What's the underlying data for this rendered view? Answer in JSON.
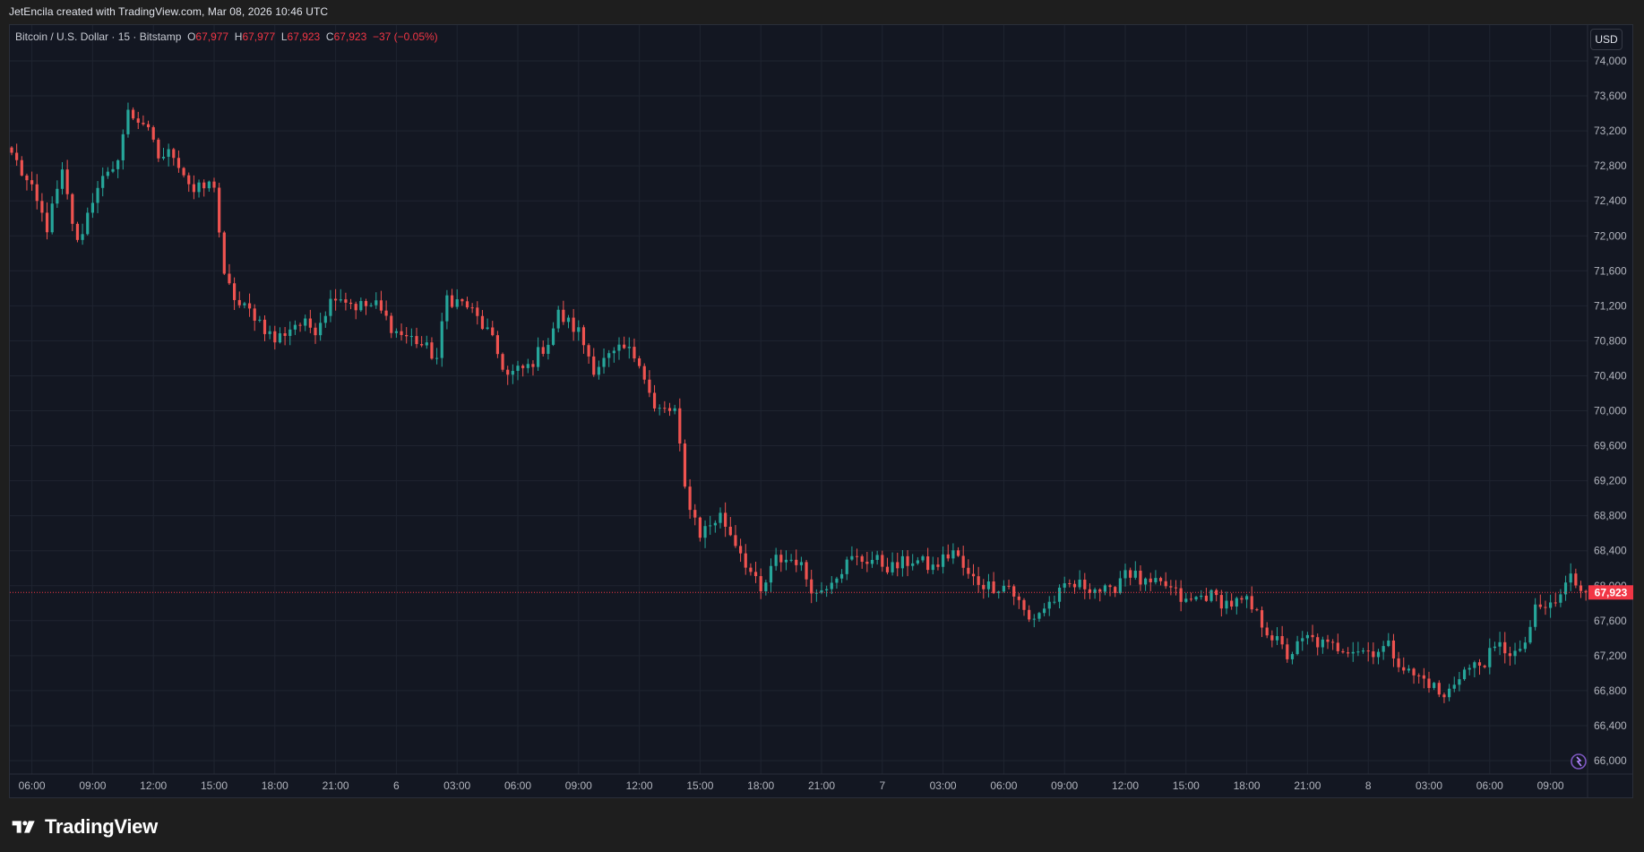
{
  "attribution": "JetEncila created with TradingView.com, Mar 08, 2026 10:46 UTC",
  "legend": {
    "symbol": "Bitcoin / U.S. Dollar · 15 · Bitstamp",
    "open_key": "O",
    "open": "67,977",
    "high_key": "H",
    "high": "67,977",
    "low_key": "L",
    "low": "67,923",
    "close_key": "C",
    "close": "67,923",
    "change": "−37 (−0.05%)"
  },
  "currency_button": "USD",
  "brand": "TradingView",
  "icons": {
    "logo": "tradingview-logo-icon",
    "alert": "spark-icon"
  },
  "colors": {
    "background": "#131722",
    "grid": "#1f2430",
    "up": "#26a69a",
    "down": "#ef5350",
    "last_price": "#f23645"
  },
  "chart_data": {
    "type": "candlestick",
    "ylim": [
      65850,
      74200
    ],
    "y_ticks": [
      {
        "value": 74000,
        "label": "74,000"
      },
      {
        "value": 73600,
        "label": "73,600"
      },
      {
        "value": 73200,
        "label": "73,200"
      },
      {
        "value": 72800,
        "label": "72,800"
      },
      {
        "value": 72400,
        "label": "72,400"
      },
      {
        "value": 72000,
        "label": "72,000"
      },
      {
        "value": 71600,
        "label": "71,600"
      },
      {
        "value": 71200,
        "label": "71,200"
      },
      {
        "value": 70800,
        "label": "70,800"
      },
      {
        "value": 70400,
        "label": "70,400"
      },
      {
        "value": 70000,
        "label": "70,000"
      },
      {
        "value": 69600,
        "label": "69,600"
      },
      {
        "value": 69200,
        "label": "69,200"
      },
      {
        "value": 68800,
        "label": "68,800"
      },
      {
        "value": 68400,
        "label": "68,400"
      },
      {
        "value": 68000,
        "label": "68,000"
      },
      {
        "value": 67600,
        "label": "67,600"
      },
      {
        "value": 67200,
        "label": "67,200"
      },
      {
        "value": 66800,
        "label": "66,800"
      },
      {
        "value": 66400,
        "label": "66,400"
      },
      {
        "value": 66000,
        "label": "66,000"
      }
    ],
    "x_ticks": [
      {
        "index": 4,
        "label": "06:00"
      },
      {
        "index": 16,
        "label": "09:00"
      },
      {
        "index": 28,
        "label": "12:00"
      },
      {
        "index": 40,
        "label": "15:00"
      },
      {
        "index": 52,
        "label": "18:00"
      },
      {
        "index": 64,
        "label": "21:00"
      },
      {
        "index": 76,
        "label": "6"
      },
      {
        "index": 88,
        "label": "03:00"
      },
      {
        "index": 100,
        "label": "06:00"
      },
      {
        "index": 112,
        "label": "09:00"
      },
      {
        "index": 124,
        "label": "12:00"
      },
      {
        "index": 136,
        "label": "15:00"
      },
      {
        "index": 148,
        "label": "18:00"
      },
      {
        "index": 160,
        "label": "21:00"
      },
      {
        "index": 172,
        "label": "7"
      },
      {
        "index": 184,
        "label": "03:00"
      },
      {
        "index": 196,
        "label": "06:00"
      },
      {
        "index": 208,
        "label": "09:00"
      },
      {
        "index": 220,
        "label": "12:00"
      },
      {
        "index": 232,
        "label": "15:00"
      },
      {
        "index": 244,
        "label": "18:00"
      },
      {
        "index": 256,
        "label": "21:00"
      },
      {
        "index": 268,
        "label": "8"
      },
      {
        "index": 280,
        "label": "03:00"
      },
      {
        "index": 292,
        "label": "06:00"
      },
      {
        "index": 304,
        "label": "09:00"
      }
    ],
    "visible_bars": 312,
    "last_price": {
      "value": 67923,
      "label": "67,923"
    },
    "anchors": [
      {
        "index": 0,
        "close": 72950
      },
      {
        "index": 4,
        "close": 72500
      },
      {
        "index": 7,
        "close": 72100
      },
      {
        "index": 10,
        "close": 72700
      },
      {
        "index": 13,
        "close": 71900
      },
      {
        "index": 17,
        "close": 72600
      },
      {
        "index": 20,
        "close": 72700
      },
      {
        "index": 23,
        "close": 73400
      },
      {
        "index": 26,
        "close": 73300
      },
      {
        "index": 29,
        "close": 72900
      },
      {
        "index": 32,
        "close": 72950
      },
      {
        "index": 36,
        "close": 72500
      },
      {
        "index": 40,
        "close": 72600
      },
      {
        "index": 42,
        "close": 71500
      },
      {
        "index": 45,
        "close": 71200
      },
      {
        "index": 48,
        "close": 71100
      },
      {
        "index": 52,
        "close": 70800
      },
      {
        "index": 56,
        "close": 71000
      },
      {
        "index": 60,
        "close": 70950
      },
      {
        "index": 64,
        "close": 71350
      },
      {
        "index": 68,
        "close": 71200
      },
      {
        "index": 72,
        "close": 71200
      },
      {
        "index": 76,
        "close": 70900
      },
      {
        "index": 80,
        "close": 70800
      },
      {
        "index": 84,
        "close": 70600
      },
      {
        "index": 86,
        "close": 71300
      },
      {
        "index": 90,
        "close": 71200
      },
      {
        "index": 94,
        "close": 70900
      },
      {
        "index": 98,
        "close": 70400
      },
      {
        "index": 102,
        "close": 70500
      },
      {
        "index": 106,
        "close": 70800
      },
      {
        "index": 108,
        "close": 71100
      },
      {
        "index": 112,
        "close": 70900
      },
      {
        "index": 115,
        "close": 70500
      },
      {
        "index": 118,
        "close": 70600
      },
      {
        "index": 121,
        "close": 70700
      },
      {
        "index": 124,
        "close": 70600
      },
      {
        "index": 127,
        "close": 70000
      },
      {
        "index": 131,
        "close": 70000
      },
      {
        "index": 133,
        "close": 69100
      },
      {
        "index": 136,
        "close": 68600
      },
      {
        "index": 140,
        "close": 68800
      },
      {
        "index": 144,
        "close": 68400
      },
      {
        "index": 148,
        "close": 67900
      },
      {
        "index": 151,
        "close": 68300
      },
      {
        "index": 155,
        "close": 68300
      },
      {
        "index": 159,
        "close": 67900
      },
      {
        "index": 162,
        "close": 68100
      },
      {
        "index": 166,
        "close": 68300
      },
      {
        "index": 170,
        "close": 68300
      },
      {
        "index": 174,
        "close": 68200
      },
      {
        "index": 178,
        "close": 68300
      },
      {
        "index": 182,
        "close": 68200
      },
      {
        "index": 186,
        "close": 68400
      },
      {
        "index": 189,
        "close": 68100
      },
      {
        "index": 193,
        "close": 68000
      },
      {
        "index": 197,
        "close": 68000
      },
      {
        "index": 201,
        "close": 67600
      },
      {
        "index": 205,
        "close": 67800
      },
      {
        "index": 209,
        "close": 68000
      },
      {
        "index": 213,
        "close": 68000
      },
      {
        "index": 217,
        "close": 67900
      },
      {
        "index": 220,
        "close": 68200
      },
      {
        "index": 224,
        "close": 68000
      },
      {
        "index": 228,
        "close": 68000
      },
      {
        "index": 232,
        "close": 67800
      },
      {
        "index": 236,
        "close": 67900
      },
      {
        "index": 240,
        "close": 67800
      },
      {
        "index": 244,
        "close": 67800
      },
      {
        "index": 248,
        "close": 67500
      },
      {
        "index": 252,
        "close": 67200
      },
      {
        "index": 256,
        "close": 67400
      },
      {
        "index": 260,
        "close": 67300
      },
      {
        "index": 264,
        "close": 67300
      },
      {
        "index": 268,
        "close": 67250
      },
      {
        "index": 272,
        "close": 67300
      },
      {
        "index": 276,
        "close": 67000
      },
      {
        "index": 280,
        "close": 66900
      },
      {
        "index": 283,
        "close": 66700
      },
      {
        "index": 286,
        "close": 67000
      },
      {
        "index": 290,
        "close": 67100
      },
      {
        "index": 294,
        "close": 67300
      },
      {
        "index": 298,
        "close": 67200
      },
      {
        "index": 301,
        "close": 67700
      },
      {
        "index": 305,
        "close": 67800
      },
      {
        "index": 308,
        "close": 68100
      },
      {
        "index": 311,
        "close": 67923
      }
    ]
  }
}
